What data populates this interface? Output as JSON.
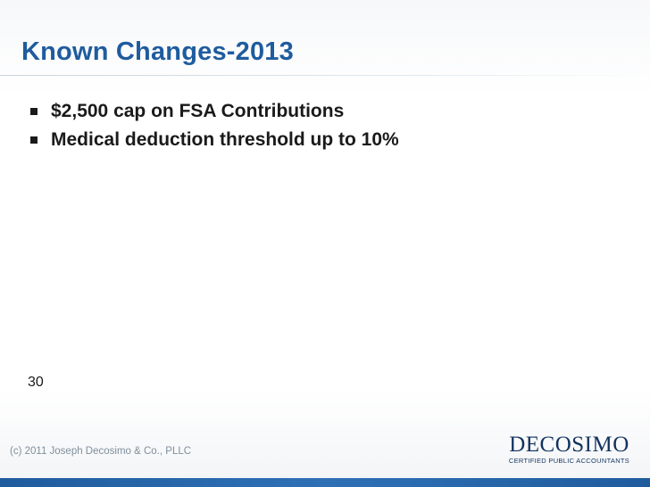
{
  "slide": {
    "title": "Known Changes-2013",
    "bullets": [
      {
        "text": "$2,500 cap on FSA Contributions"
      },
      {
        "text": "Medical deduction threshold up to 10%"
      }
    ],
    "page_number": "30"
  },
  "footer": {
    "copyright": "(c) 2011 Joseph Decosimo & Co., PLLC",
    "logo_name": "DECOSIMO",
    "logo_tagline": "CERTIFIED PUBLIC ACCOUNTANTS"
  },
  "colors": {
    "title": "#1f5c9e",
    "bottom_bar": "#1f5c9e",
    "logo": "#12335f"
  }
}
